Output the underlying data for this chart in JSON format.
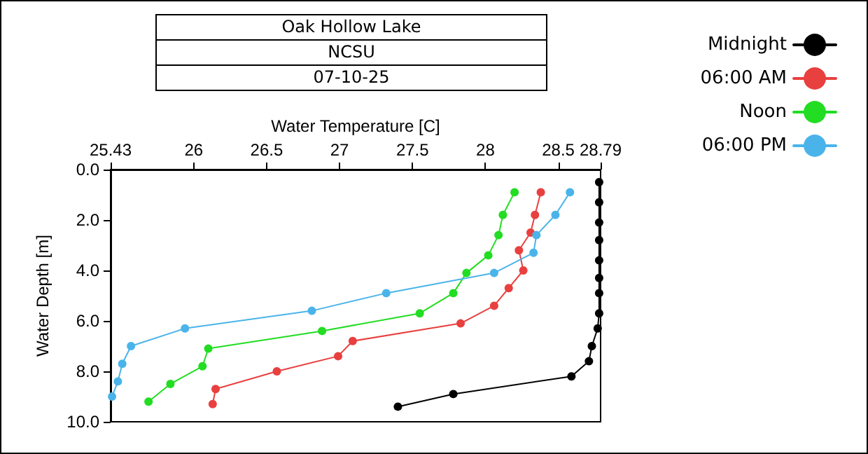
{
  "chart_data": {
    "type": "line",
    "title": "Oak Hollow Lake",
    "subtitle": "NCSU",
    "annotations": [
      "07-10-25"
    ],
    "xlabel": "Water Temperature [C]",
    "ylabel": "Water Depth [m]",
    "xlim": [
      25.43,
      28.79
    ],
    "xticks": [
      25.43,
      26,
      26.5,
      27,
      27.5,
      28,
      28.5,
      28.79
    ],
    "ylim": [
      10,
      0
    ],
    "yticks": [
      {
        "value": 0,
        "label": "0.0"
      },
      {
        "value": 2,
        "label": "2.0"
      },
      {
        "value": 4,
        "label": "4.0"
      },
      {
        "value": 6,
        "label": "6.0"
      },
      {
        "value": 8,
        "label": "8.0"
      },
      {
        "value": 10,
        "label": "10.0"
      }
    ],
    "grid": false,
    "legend": "top right",
    "marker": "circle",
    "line_style": "solid",
    "series": [
      {
        "name": "Midnight",
        "color": "#000000",
        "x": [
          28.78,
          28.78,
          28.78,
          28.78,
          28.78,
          28.78,
          28.78,
          28.78,
          28.77,
          28.73,
          28.71,
          28.59,
          27.78,
          27.4
        ],
        "values": [
          0.5,
          1.3,
          2.1,
          2.8,
          3.6,
          4.3,
          4.9,
          5.7,
          6.3,
          7.0,
          7.6,
          8.2,
          8.9,
          9.4
        ]
      },
      {
        "name": "06:00 AM",
        "color": "#e8403f",
        "x": [
          28.38,
          28.34,
          28.31,
          28.23,
          28.26,
          28.16,
          28.06,
          27.83,
          27.09,
          26.99,
          26.57,
          26.15,
          26.13
        ],
        "values": [
          0.9,
          1.8,
          2.5,
          3.2,
          4.0,
          4.7,
          5.4,
          6.1,
          6.8,
          7.4,
          8.0,
          8.7,
          9.3
        ]
      },
      {
        "name": "Noon",
        "color": "#22dd22",
        "x": [
          28.2,
          28.12,
          28.09,
          28.02,
          27.87,
          27.78,
          27.55,
          26.88,
          26.1,
          26.06,
          25.84,
          25.69
        ],
        "values": [
          0.9,
          1.8,
          2.6,
          3.4,
          4.1,
          4.9,
          5.7,
          6.4,
          7.1,
          7.8,
          8.5,
          9.2
        ]
      },
      {
        "name": "06:00 PM",
        "color": "#4ab4ea",
        "x": [
          28.58,
          28.48,
          28.35,
          28.33,
          28.06,
          27.32,
          26.81,
          25.94,
          25.57,
          25.51,
          25.48,
          25.44
        ],
        "values": [
          0.9,
          1.8,
          2.6,
          3.3,
          4.1,
          4.9,
          5.6,
          6.3,
          7.0,
          7.7,
          8.4,
          9.0
        ]
      }
    ]
  }
}
